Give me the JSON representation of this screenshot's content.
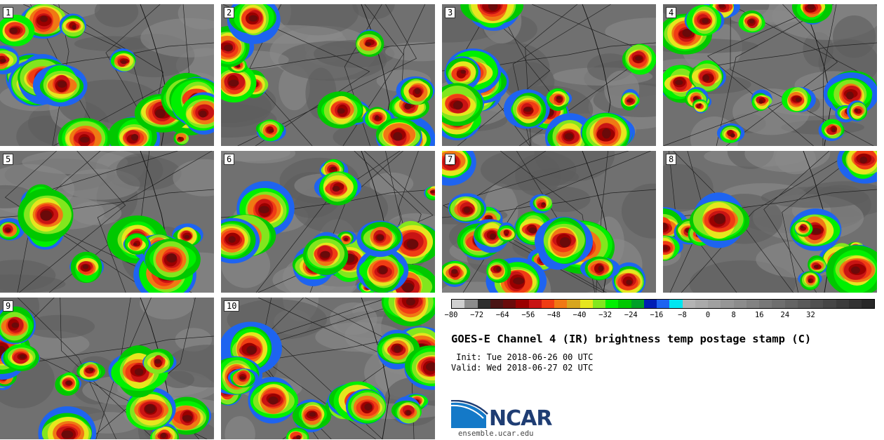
{
  "panels": [
    {
      "label": "1"
    },
    {
      "label": "2"
    },
    {
      "label": "3"
    },
    {
      "label": "4"
    },
    {
      "label": "5"
    },
    {
      "label": "6"
    },
    {
      "label": "7"
    },
    {
      "label": "8"
    },
    {
      "label": "9"
    },
    {
      "label": "10"
    }
  ],
  "colorbar": {
    "colors": [
      "#cfcfcf",
      "#8c8c8c",
      "#2e2e2e",
      "#4a1414",
      "#6a0a0a",
      "#9a0000",
      "#c81414",
      "#f03c14",
      "#f07814",
      "#d7a51e",
      "#e6e61e",
      "#82e61e",
      "#00f000",
      "#00c800",
      "#00a028",
      "#001eb4",
      "#1e64f0",
      "#00e6f0",
      "#b4b4b4",
      "#aaaaaa",
      "#a0a0a0",
      "#969696",
      "#8c8c8c",
      "#828282",
      "#787878",
      "#6e6e6e",
      "#646464",
      "#5a5a5a",
      "#505050",
      "#464646",
      "#3c3c3c",
      "#323232",
      "#282828"
    ],
    "ticks": [
      "−80",
      "−72",
      "−64",
      "−56",
      "−48",
      "−40",
      "−32",
      "−24",
      "−16",
      "−8",
      "0",
      "8",
      "16",
      "24",
      "32"
    ]
  },
  "title": "GOES-E Channel 4 (IR) brightness temp postage stamp (C)",
  "init": " Init: Tue 2018-06-26 00 UTC",
  "valid": "Valid: Wed 2018-06-27 02 UTC",
  "logo_text": "NCAR",
  "url": "ensemble.ucar.edu"
}
